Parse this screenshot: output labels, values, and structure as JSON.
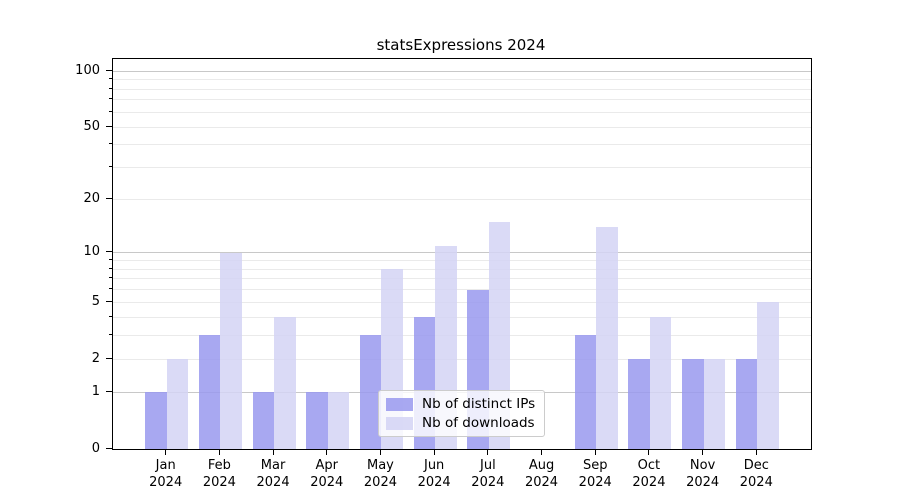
{
  "chart_data": {
    "type": "bar",
    "title": "statsExpressions 2024",
    "categories": [
      "Jan 2024",
      "Feb 2024",
      "Mar 2024",
      "Apr 2024",
      "May 2024",
      "Jun 2024",
      "Jul 2024",
      "Aug 2024",
      "Sep 2024",
      "Oct 2024",
      "Nov 2024",
      "Dec 2024"
    ],
    "xtick_labels": [
      "Jan\n2024",
      "Feb\n2024",
      "Mar\n2024",
      "Apr\n2024",
      "May\n2024",
      "Jun\n2024",
      "Jul\n2024",
      "Aug\n2024",
      "Sep\n2024",
      "Oct\n2024",
      "Nov\n2024",
      "Dec\n2024"
    ],
    "series": [
      {
        "name": "Nb of distinct IPs",
        "color": "#9999ee",
        "alpha": 0.85,
        "values": [
          1,
          3,
          1,
          1,
          3,
          4,
          6,
          0,
          3,
          2,
          2,
          2
        ]
      },
      {
        "name": "Nb of downloads",
        "color": "#d3d3f5",
        "alpha": 0.85,
        "values": [
          2,
          10,
          4,
          1,
          8,
          11,
          15,
          0,
          14,
          4,
          2,
          5
        ]
      }
    ],
    "xlabel": "",
    "ylabel": "",
    "yscale": "log1p",
    "ylim": [
      0,
      116
    ],
    "yticks": [
      0,
      1,
      2,
      5,
      10,
      20,
      50,
      100
    ],
    "minor_yticks": [
      3,
      4,
      6,
      7,
      8,
      9,
      30,
      40,
      60,
      70,
      80,
      90
    ],
    "major_decades": [
      1,
      10,
      100
    ],
    "grid": true,
    "legend_position": "lower center",
    "colors": {
      "major_grid": "#c8c8c8",
      "minor_grid": "#eaeaea",
      "axis": "#000000",
      "background": "#ffffff"
    }
  }
}
